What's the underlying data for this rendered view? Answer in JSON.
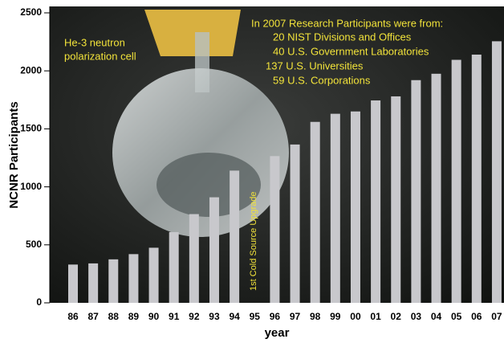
{
  "chart_data": {
    "type": "bar",
    "y_label": "NCNR Participants",
    "x_label": "year",
    "categories": [
      "86",
      "87",
      "88",
      "89",
      "90",
      "91",
      "92",
      "93",
      "94",
      "95",
      "96",
      "97",
      "98",
      "99",
      "00",
      "01",
      "02",
      "03",
      "04",
      "05",
      "06",
      "07"
    ],
    "values": [
      330,
      340,
      375,
      420,
      475,
      610,
      765,
      910,
      1140,
      null,
      1265,
      1365,
      1560,
      1630,
      1650,
      1745,
      1780,
      1920,
      1975,
      2095,
      2140,
      2255
    ],
    "color": "#c8c8cc",
    "ylim": [
      0,
      2500
    ],
    "yticks": [
      0,
      500,
      1000,
      1500,
      2000,
      2500
    ],
    "annotations": {
      "photo_caption": [
        "He-3 neutron",
        "polarization cell"
      ],
      "participants": [
        "In 2007 Research Participants were from:",
        "20 NIST Divisions and Offices",
        "40 U.S. Government Laboratories",
        "137 U.S. Universities",
        "59 U.S. Corporations"
      ],
      "event": "1st Cold Source Upgrade"
    }
  }
}
